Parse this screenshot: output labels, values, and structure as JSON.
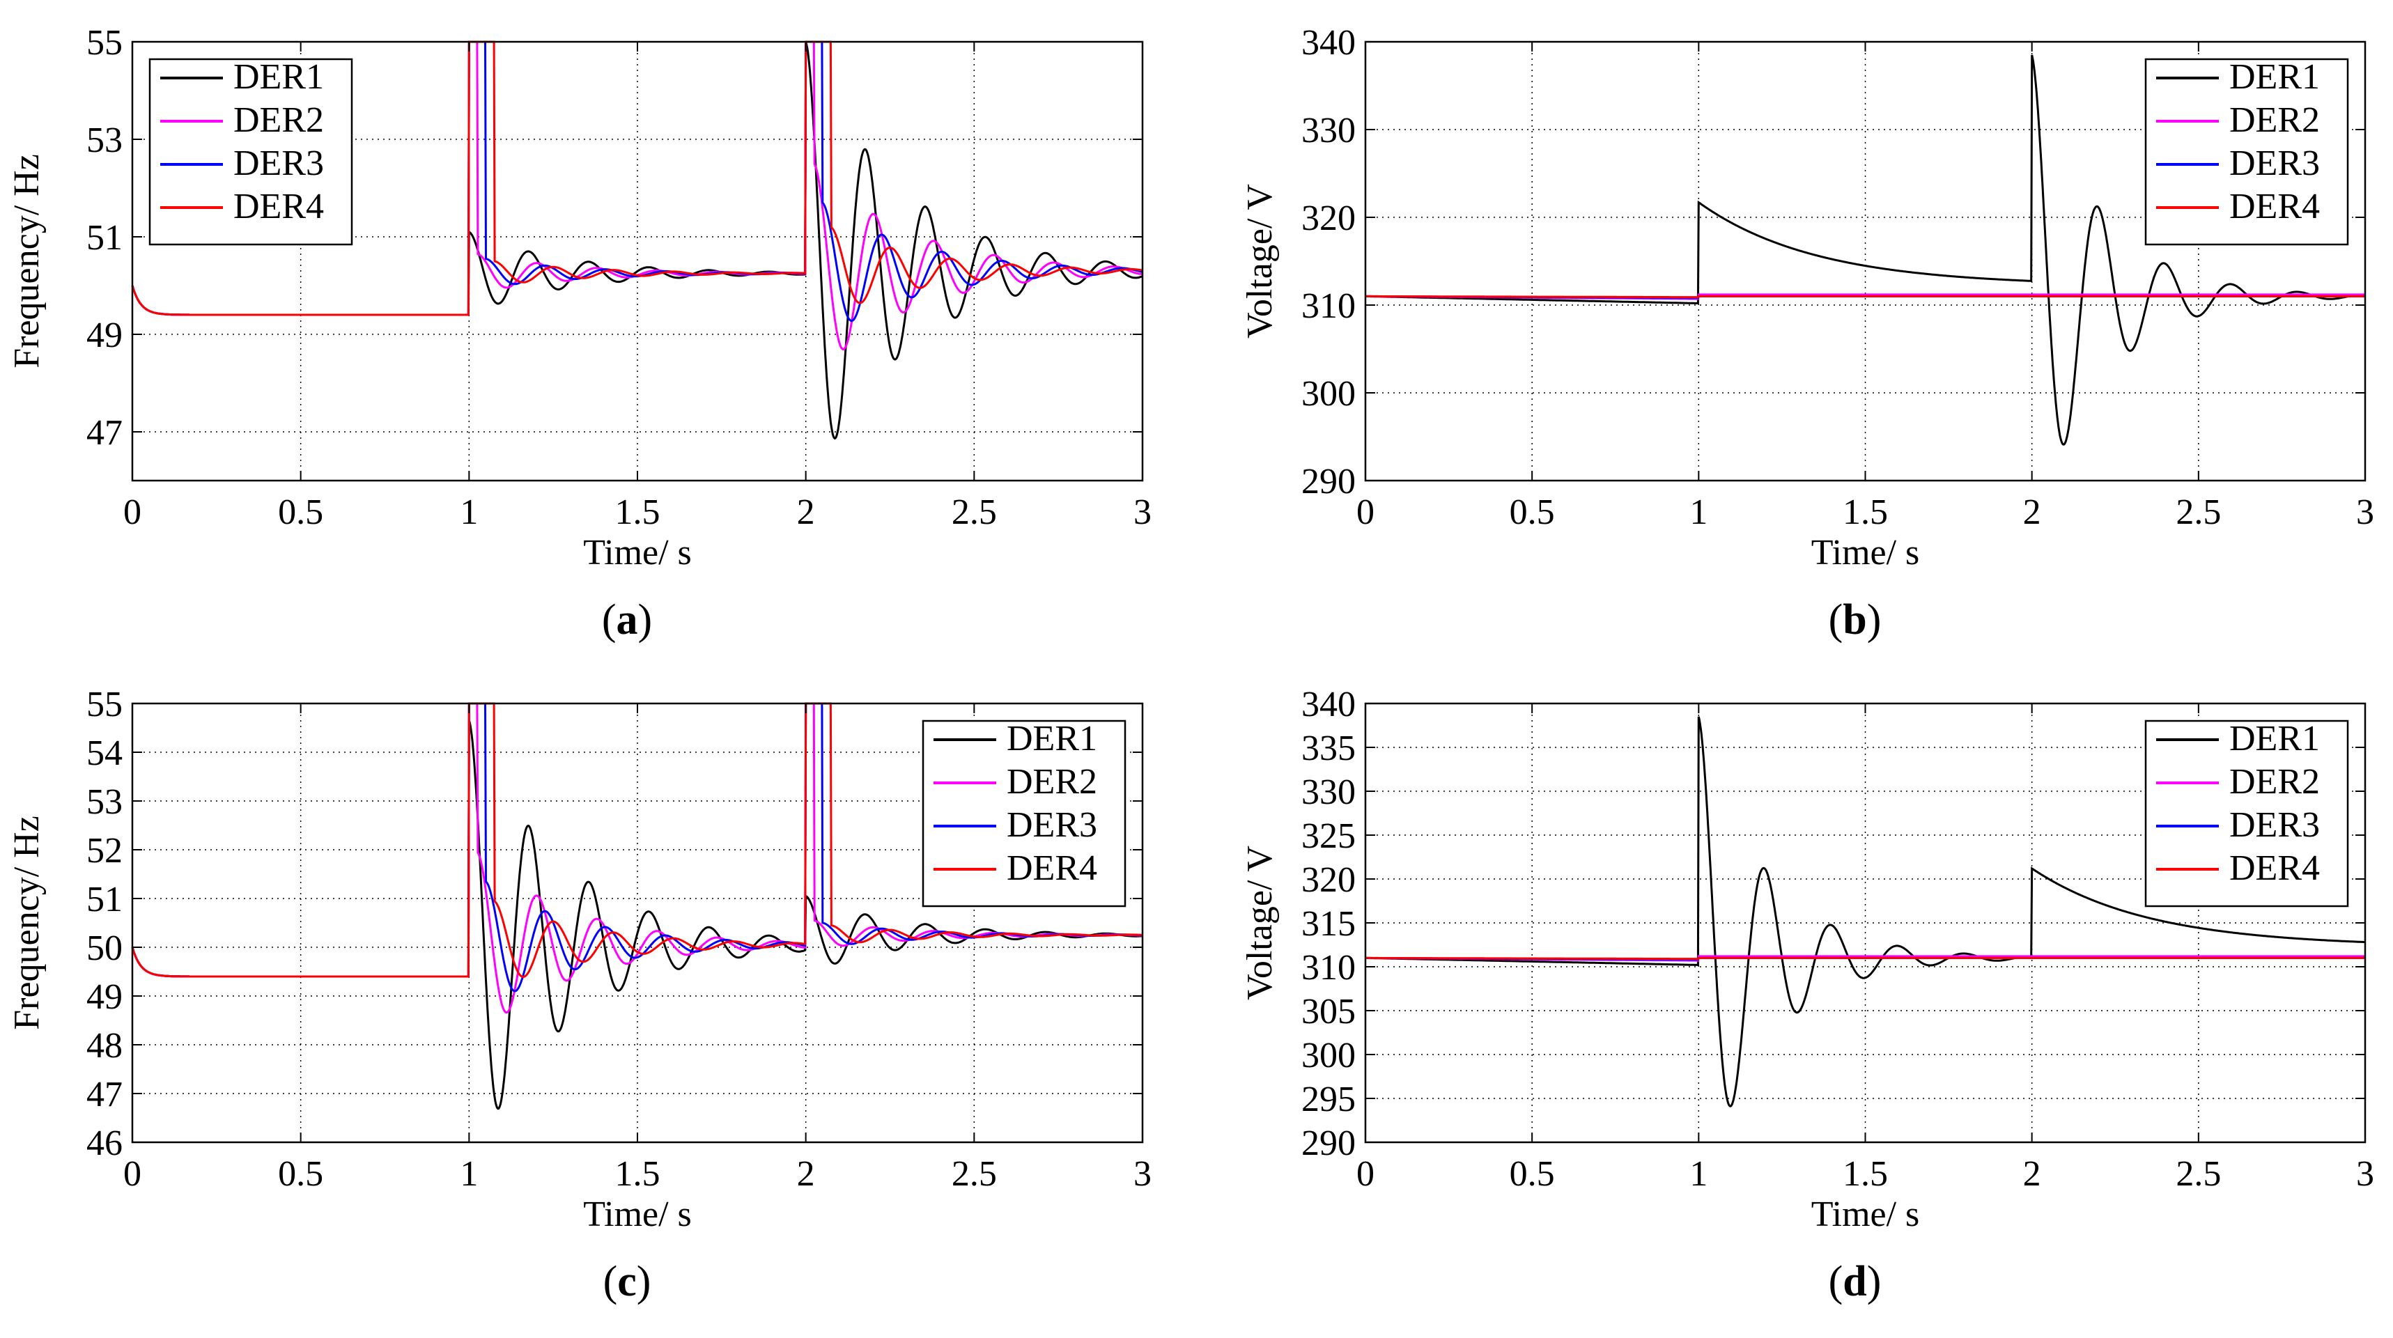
{
  "chart_data": [
    {
      "id": "a",
      "type": "line",
      "caption": "(a)",
      "caption_letter": "a",
      "xlabel": "Time/ s",
      "ylabel": "Frequency/ Hz",
      "xlim": [
        0,
        3
      ],
      "ylim": [
        46,
        55
      ],
      "xticks": [
        0,
        0.5,
        1,
        1.5,
        2,
        2.5,
        3
      ],
      "xtick_labels": [
        "0",
        "0.5",
        "1",
        "1.5",
        "2",
        "2.5",
        "3"
      ],
      "yticks": [
        47,
        49,
        51,
        53,
        55
      ],
      "ytick_labels": [
        "47",
        "49",
        "51",
        "53",
        "55"
      ],
      "grid": true,
      "legend_position": "top-left",
      "series": [
        {
          "name": "DER1",
          "color": "#000000",
          "start": 50,
          "settle": 49.4,
          "seg1": {
            "mean": 50.25,
            "amp": 0.85,
            "phase": 0
          },
          "seg2": {
            "mean": 50.3,
            "amp": 4.7,
            "phase": 0
          }
        },
        {
          "name": "DER2",
          "color": "#ff00ff",
          "start": 50,
          "settle": 49.4,
          "seg1": {
            "mean": 50.25,
            "amp": 0.4,
            "phase": 0.55
          },
          "seg2": {
            "mean": 50.3,
            "amp": 2.2,
            "phase": 0.55
          }
        },
        {
          "name": "DER3",
          "color": "#0000ff",
          "start": 50,
          "settle": 49.4,
          "seg1": {
            "mean": 50.25,
            "amp": 0.3,
            "phase": 1.1
          },
          "seg2": {
            "mean": 50.3,
            "amp": 1.4,
            "phase": 1.1
          }
        },
        {
          "name": "DER4",
          "color": "#ff0000",
          "start": 50,
          "settle": 49.4,
          "seg1": {
            "mean": 50.25,
            "amp": 0.25,
            "phase": 1.65
          },
          "seg2": {
            "mean": 50.3,
            "amp": 0.9,
            "phase": 1.65
          }
        }
      ]
    },
    {
      "id": "b",
      "type": "line",
      "caption": "(b)",
      "caption_letter": "b",
      "xlabel": "Time/ s",
      "ylabel": "Voltage/ V",
      "xlim": [
        0,
        3
      ],
      "ylim": [
        290,
        340
      ],
      "xticks": [
        0,
        0.5,
        1,
        1.5,
        2,
        2.5,
        3
      ],
      "xtick_labels": [
        "0",
        "0.5",
        "1",
        "1.5",
        "2",
        "2.5",
        "3"
      ],
      "yticks": [
        290,
        300,
        310,
        320,
        330,
        340
      ],
      "ytick_labels": [
        "290",
        "300",
        "310",
        "320",
        "330",
        "340"
      ],
      "grid": true,
      "legend_position": "top-right",
      "series": [
        {
          "name": "DER1",
          "color": "#000000",
          "mode": "voltage_b",
          "base": 311,
          "dip": 310.2,
          "exp_start": 321.7,
          "exp_end": 312.2,
          "osc_amp": 27.5
        },
        {
          "name": "DER2",
          "color": "#ff00ff",
          "mode": "flat",
          "base": 311,
          "dip": 310.7,
          "step": 311.2
        },
        {
          "name": "DER3",
          "color": "#0000ff",
          "mode": "flat",
          "base": 311,
          "dip": 310.8,
          "step": 311.0
        },
        {
          "name": "DER4",
          "color": "#ff0000",
          "mode": "flat",
          "base": 311,
          "dip": 310.9,
          "step": 311.0
        }
      ]
    },
    {
      "id": "c",
      "type": "line",
      "caption": "(c)",
      "caption_letter": "c",
      "xlabel": "Time/ s",
      "ylabel": "Frequency/ Hz",
      "xlim": [
        0,
        3
      ],
      "ylim": [
        46,
        55
      ],
      "xticks": [
        0,
        0.5,
        1,
        1.5,
        2,
        2.5,
        3
      ],
      "xtick_labels": [
        "0",
        "0.5",
        "1",
        "1.5",
        "2",
        "2.5",
        "3"
      ],
      "yticks": [
        46,
        47,
        48,
        49,
        50,
        51,
        52,
        53,
        54,
        55
      ],
      "ytick_labels": [
        "46",
        "47",
        "48",
        "49",
        "50",
        "51",
        "52",
        "53",
        "54",
        "55"
      ],
      "grid": true,
      "legend_position": "top-right",
      "series": [
        {
          "name": "DER1",
          "color": "#000000",
          "start": 50,
          "settle": 49.4,
          "seg1": {
            "mean": 50.05,
            "amp": 4.6,
            "phase": 0
          },
          "seg2": {
            "mean": 50.25,
            "amp": 0.8,
            "phase": 0
          }
        },
        {
          "name": "DER2",
          "color": "#ff00ff",
          "start": 50,
          "settle": 49.4,
          "seg1": {
            "mean": 50.05,
            "amp": 1.9,
            "phase": 0.55
          },
          "seg2": {
            "mean": 50.25,
            "amp": 0.3,
            "phase": 0.55
          }
        },
        {
          "name": "DER3",
          "color": "#0000ff",
          "start": 50,
          "settle": 49.4,
          "seg1": {
            "mean": 50.05,
            "amp": 1.3,
            "phase": 1.1
          },
          "seg2": {
            "mean": 50.25,
            "amp": 0.25,
            "phase": 1.1
          }
        },
        {
          "name": "DER4",
          "color": "#ff0000",
          "start": 50,
          "settle": 49.4,
          "seg1": {
            "mean": 50.05,
            "amp": 0.9,
            "phase": 1.65
          },
          "seg2": {
            "mean": 50.25,
            "amp": 0.2,
            "phase": 1.65
          }
        }
      ]
    },
    {
      "id": "d",
      "type": "line",
      "caption": "(d)",
      "caption_letter": "d",
      "xlabel": "Time/ s",
      "ylabel": "Voltage/ V",
      "xlim": [
        0,
        3
      ],
      "ylim": [
        290,
        340
      ],
      "xticks": [
        0,
        0.5,
        1,
        1.5,
        2,
        2.5,
        3
      ],
      "xtick_labels": [
        "0",
        "0.5",
        "1",
        "1.5",
        "2",
        "2.5",
        "3"
      ],
      "yticks": [
        290,
        295,
        300,
        305,
        310,
        315,
        320,
        325,
        330,
        335,
        340
      ],
      "ytick_labels": [
        "290",
        "295",
        "300",
        "305",
        "310",
        "315",
        "320",
        "325",
        "330",
        "335",
        "340"
      ],
      "grid": true,
      "legend_position": "top-right",
      "series": [
        {
          "name": "DER1",
          "color": "#000000",
          "mode": "voltage_d",
          "base": 311,
          "dip": 310.2,
          "osc_amp": 27.5,
          "exp_start": 321.2,
          "exp_end": 312.3
        },
        {
          "name": "DER2",
          "color": "#ff00ff",
          "mode": "flat",
          "base": 311,
          "dip": 310.7,
          "step": 311.2
        },
        {
          "name": "DER3",
          "color": "#0000ff",
          "mode": "flat",
          "base": 311,
          "dip": 310.8,
          "step": 311.0
        },
        {
          "name": "DER4",
          "color": "#ff0000",
          "mode": "flat",
          "base": 311,
          "dip": 310.9,
          "step": 311.0
        }
      ]
    }
  ]
}
